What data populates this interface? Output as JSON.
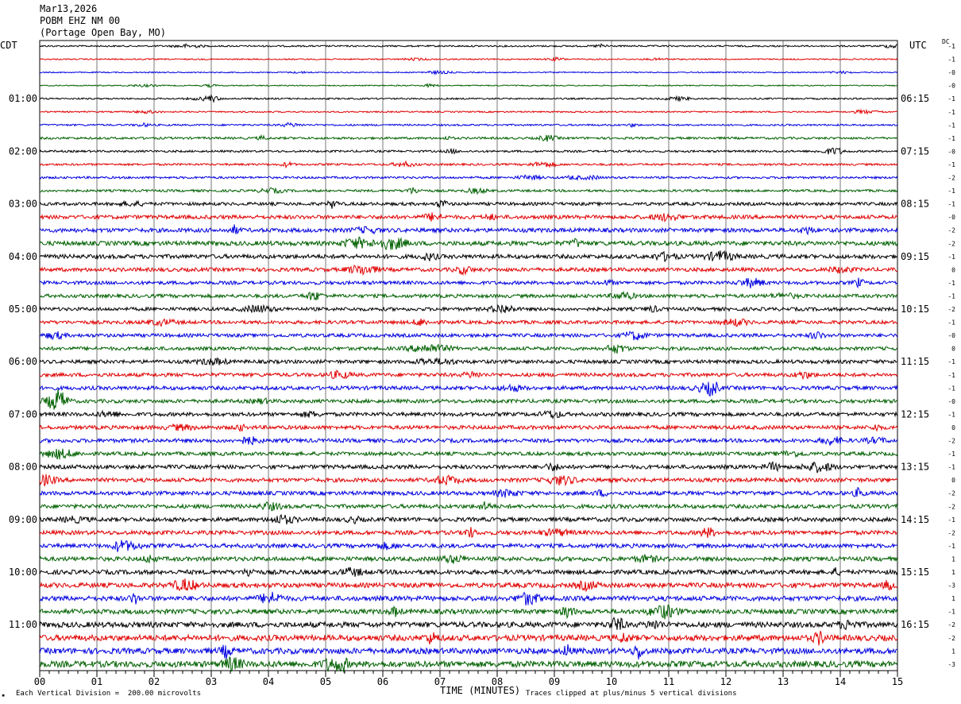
{
  "header": {
    "date": "Mar13,2026",
    "station": "POBM EHZ NM 00",
    "location": "(Portage Open Bay, MO)"
  },
  "left_axis_label": "CDT",
  "right_axis_label": "UTC",
  "dc_label": "DC",
  "footer": {
    "scale_note": "Each Vertical Division =  200.00 microvolts",
    "clip_note": "Traces clipped at plus/minus 5 vertical divisions",
    "corner_mark": "▪"
  },
  "chart_data": {
    "type": "line",
    "title": "",
    "xlabel": "TIME (MINUTES)",
    "xlim": [
      0,
      15
    ],
    "x_tick_labels": [
      "00",
      "01",
      "02",
      "03",
      "04",
      "05",
      "06",
      "07",
      "08",
      "09",
      "10",
      "11",
      "12",
      "13",
      "14",
      "15"
    ],
    "trace_colors": [
      "#000000",
      "#e00000",
      "#0000e0",
      "#006000"
    ],
    "trace_count": 48,
    "left_hour_labels": [
      "01:00",
      "02:00",
      "03:00",
      "04:00",
      "05:00",
      "06:00",
      "07:00",
      "08:00",
      "09:00",
      "10:00",
      "11:00"
    ],
    "right_hour_labels": [
      "06:15",
      "07:15",
      "08:15",
      "09:15",
      "10:15",
      "11:15",
      "12:15",
      "13:15",
      "14:15",
      "15:15",
      "16:15"
    ],
    "dc_offsets": [
      "-1",
      "-1",
      "-0",
      "-0",
      "-1",
      "-1",
      "-1",
      "-1",
      "-0",
      "-1",
      "-2",
      "-1",
      "-1",
      "-0",
      "-2",
      "-2",
      "-1",
      "0",
      "-1",
      "-1",
      "-2",
      "-1",
      "-0",
      "0",
      "-1",
      "-1",
      "-1",
      "-0",
      "-1",
      "0",
      "-2",
      "-1",
      "-1",
      "0",
      "-2",
      "-2",
      "-1",
      "-2",
      "-1",
      "1",
      "1",
      "-3",
      "1",
      "-1",
      "-2",
      "-2",
      "1",
      "-3"
    ],
    "amplitude_profile": [
      1.0,
      0.8,
      0.7,
      0.7,
      1.0,
      0.9,
      1.1,
      1.4,
      1.3,
      1.3,
      1.4,
      1.5,
      2.0,
      2.4,
      2.6,
      2.8,
      2.6,
      2.4,
      2.2,
      2.2,
      2.2,
      2.2,
      2.2,
      2.2,
      2.3,
      2.3,
      2.4,
      2.3,
      2.4,
      2.4,
      2.4,
      2.3,
      2.5,
      2.5,
      2.5,
      2.5,
      2.6,
      2.6,
      2.6,
      2.7,
      2.8,
      3.0,
      3.0,
      3.0,
      3.4,
      3.6,
      3.6,
      3.8
    ]
  }
}
